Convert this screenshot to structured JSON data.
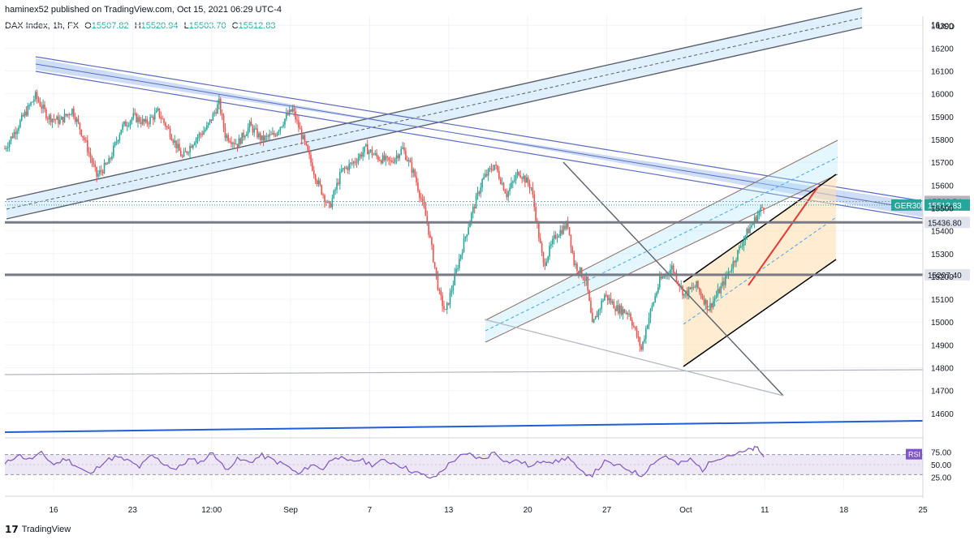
{
  "header": {
    "published_line": "haminex52 published on TradingView.com, Oct 15, 2021 06:29 UTC-4",
    "symbol": "DAX Index, 1h, FX",
    "ohlc": {
      "o_label": "O",
      "o": "15507.82",
      "h_label": "H",
      "h": "15520.94",
      "l_label": "L",
      "l": "15503.70",
      "c_label": "C",
      "c": "15512.83"
    }
  },
  "footer": {
    "brand": "TradingView"
  },
  "colors": {
    "up": "#26a69a",
    "down": "#ef5350",
    "channel_fill": "#bbdefb",
    "channel_line": "#5c6bc0",
    "bold_level": "#787b86",
    "rsi": "#7e57c2",
    "rsi_band": "#ede7f6",
    "pitchfork_fill": "#ffe0b2",
    "trend_blue": "#1e5fd9",
    "red_line": "#e53935"
  },
  "chart_data": {
    "type": "candlestick",
    "instrument": "DAX Index, 1h, FX",
    "currency": "USD",
    "x_ticks": [
      "16",
      "23",
      "12:00",
      "Sep",
      "7",
      "13",
      "20",
      "27",
      "Oct",
      "11",
      "18",
      "25"
    ],
    "y_ticks": [
      14600,
      14700,
      14800,
      14900,
      15000,
      15100,
      15200,
      15300,
      15400,
      15500,
      15600,
      15700,
      15800,
      15900,
      16000,
      16100,
      16200,
      16300
    ],
    "y_top_tick_partial": "16",
    "y_range": [
      14500,
      16340
    ],
    "key_levels": [
      {
        "label": "15528.54",
        "value": 15528.54
      },
      {
        "label": "15436.80",
        "value": 15436.8
      },
      {
        "label": "15207.40",
        "value": 15207.4
      }
    ],
    "last_price": {
      "symbol": "GER30",
      "value": "15512.83"
    },
    "price_path": [
      [
        0,
        15760
      ],
      [
        3,
        15900
      ],
      [
        5,
        15990
      ],
      [
        7,
        15900
      ],
      [
        9,
        15880
      ],
      [
        11,
        15930
      ],
      [
        13,
        15800
      ],
      [
        15,
        15640
      ],
      [
        17,
        15700
      ],
      [
        19,
        15850
      ],
      [
        21,
        15900
      ],
      [
        23,
        15870
      ],
      [
        25,
        15920
      ],
      [
        27,
        15830
      ],
      [
        29,
        15720
      ],
      [
        31,
        15800
      ],
      [
        33,
        15850
      ],
      [
        35,
        15960
      ],
      [
        36,
        15820
      ],
      [
        38,
        15780
      ],
      [
        40,
        15860
      ],
      [
        42,
        15800
      ],
      [
        44,
        15820
      ],
      [
        46,
        15900
      ],
      [
        47,
        15930
      ],
      [
        49,
        15780
      ],
      [
        51,
        15620
      ],
      [
        53,
        15500
      ],
      [
        55,
        15660
      ],
      [
        57,
        15700
      ],
      [
        59,
        15760
      ],
      [
        61,
        15720
      ],
      [
        63,
        15700
      ],
      [
        65,
        15760
      ],
      [
        67,
        15640
      ],
      [
        69,
        15440
      ],
      [
        71,
        15120
      ],
      [
        72,
        15040
      ],
      [
        74,
        15250
      ],
      [
        76,
        15450
      ],
      [
        78,
        15620
      ],
      [
        80,
        15690
      ],
      [
        82,
        15560
      ],
      [
        84,
        15660
      ],
      [
        86,
        15590
      ],
      [
        88,
        15250
      ],
      [
        90,
        15380
      ],
      [
        92,
        15430
      ],
      [
        93,
        15260
      ],
      [
        95,
        15180
      ],
      [
        96,
        14980
      ],
      [
        98,
        15120
      ],
      [
        100,
        15060
      ],
      [
        102,
        15040
      ],
      [
        104,
        14880
      ],
      [
        105,
        15000
      ],
      [
        107,
        15180
      ],
      [
        109,
        15240
      ],
      [
        111,
        15120
      ],
      [
        113,
        15160
      ],
      [
        115,
        15060
      ],
      [
        117,
        15150
      ],
      [
        119,
        15260
      ],
      [
        121,
        15380
      ],
      [
        123,
        15470
      ],
      [
        124,
        15512
      ]
    ],
    "rsi": {
      "label": "RSI",
      "levels": [
        70,
        30
      ],
      "y_ticks": [
        "75.00",
        "50.00",
        "25.00"
      ],
      "path": [
        [
          0,
          50
        ],
        [
          2,
          70
        ],
        [
          4,
          60
        ],
        [
          6,
          72
        ],
        [
          8,
          50
        ],
        [
          10,
          62
        ],
        [
          12,
          45
        ],
        [
          14,
          30
        ],
        [
          16,
          55
        ],
        [
          18,
          65
        ],
        [
          20,
          58
        ],
        [
          22,
          45
        ],
        [
          24,
          68
        ],
        [
          26,
          52
        ],
        [
          28,
          40
        ],
        [
          30,
          60
        ],
        [
          32,
          55
        ],
        [
          34,
          75
        ],
        [
          36,
          40
        ],
        [
          38,
          60
        ],
        [
          40,
          55
        ],
        [
          42,
          68
        ],
        [
          44,
          58
        ],
        [
          46,
          48
        ],
        [
          48,
          30
        ],
        [
          50,
          50
        ],
        [
          52,
          42
        ],
        [
          54,
          68
        ],
        [
          56,
          55
        ],
        [
          58,
          60
        ],
        [
          60,
          50
        ],
        [
          62,
          58
        ],
        [
          64,
          52
        ],
        [
          66,
          40
        ],
        [
          68,
          30
        ],
        [
          70,
          22
        ],
        [
          72,
          45
        ],
        [
          74,
          65
        ],
        [
          76,
          70
        ],
        [
          78,
          60
        ],
        [
          80,
          75
        ],
        [
          82,
          55
        ],
        [
          84,
          58
        ],
        [
          86,
          45
        ],
        [
          88,
          60
        ],
        [
          90,
          55
        ],
        [
          92,
          65
        ],
        [
          94,
          35
        ],
        [
          96,
          30
        ],
        [
          98,
          55
        ],
        [
          100,
          48
        ],
        [
          102,
          40
        ],
        [
          104,
          28
        ],
        [
          106,
          55
        ],
        [
          108,
          68
        ],
        [
          110,
          50
        ],
        [
          112,
          60
        ],
        [
          114,
          40
        ],
        [
          116,
          62
        ],
        [
          118,
          68
        ],
        [
          120,
          72
        ],
        [
          122,
          80
        ],
        [
          123,
          83
        ],
        [
          124,
          65
        ]
      ]
    }
  }
}
